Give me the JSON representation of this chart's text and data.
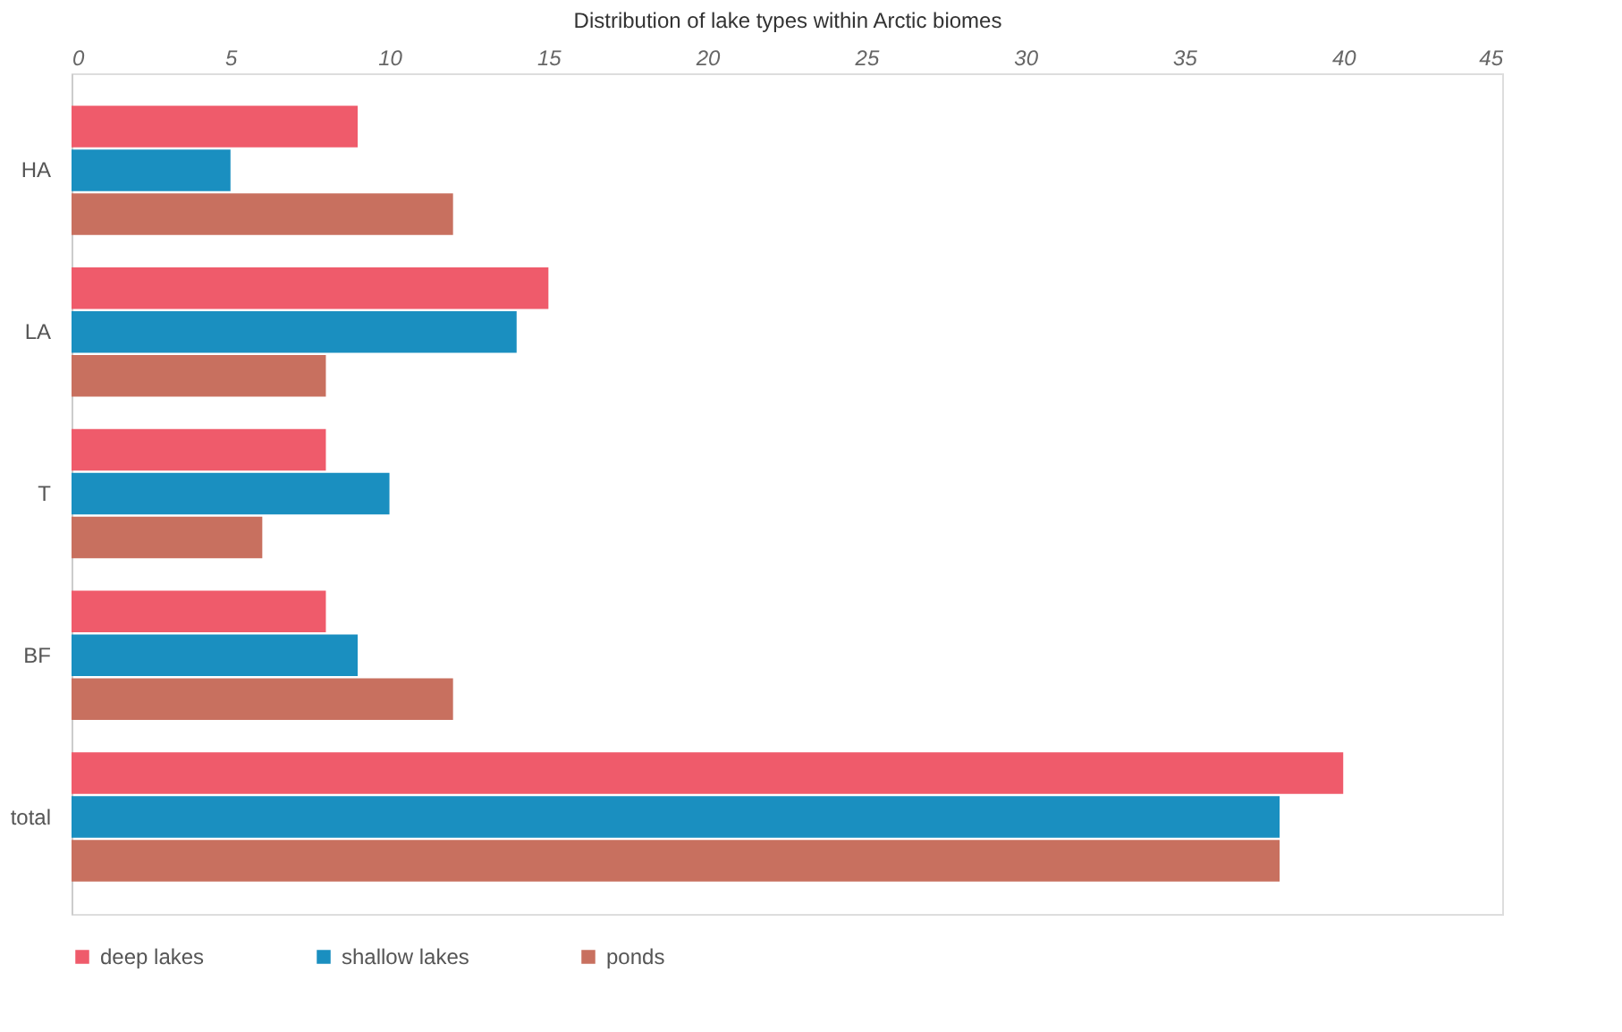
{
  "chart_data": {
    "type": "bar",
    "orientation": "horizontal",
    "xlabel": "Distribution of lake types within Arctic biomes",
    "categories": [
      "HA",
      "LA",
      "T",
      "BF",
      "total"
    ],
    "series": [
      {
        "name": "deep lakes",
        "color": "#ef5b6b",
        "values": [
          9,
          15,
          8,
          8,
          40
        ]
      },
      {
        "name": "shallow lakes",
        "color": "#1a8fc0",
        "values": [
          5,
          14,
          10,
          9,
          38
        ]
      },
      {
        "name": "ponds",
        "color": "#c8705f",
        "values": [
          12,
          8,
          6,
          12,
          38
        ]
      }
    ],
    "xlim": [
      0,
      45
    ],
    "xticks": [
      0,
      5,
      10,
      15,
      20,
      25,
      30,
      35,
      40,
      45
    ],
    "grid": false,
    "legend": "bottom"
  }
}
